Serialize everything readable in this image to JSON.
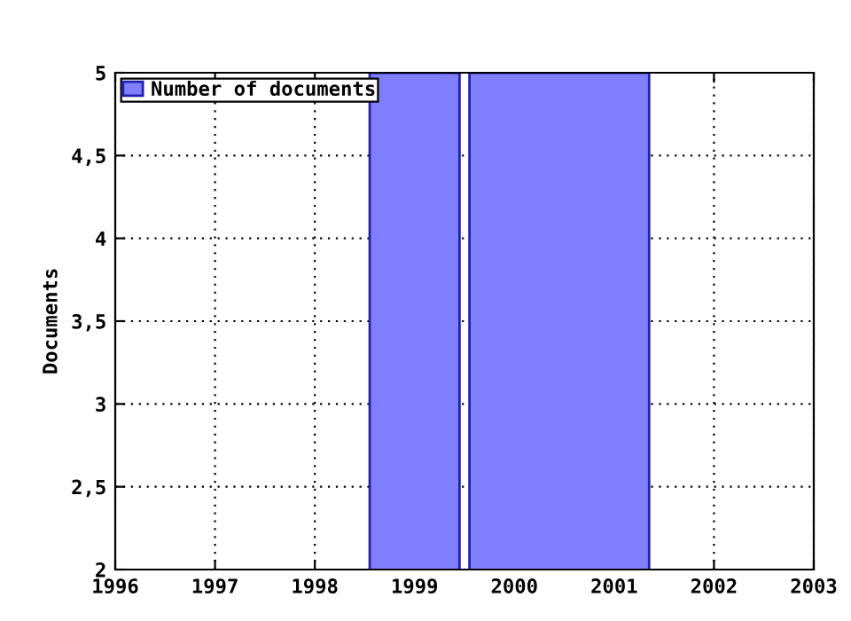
{
  "chart_data": {
    "type": "histogram",
    "ylabel": "Documents",
    "bins": [
      1998.55,
      1999.45,
      1999.55,
      2001.35
    ],
    "series": [
      {
        "name": "Number of documents",
        "color": "#8080ff",
        "values": [
          5,
          null,
          5
        ]
      }
    ],
    "xlim": [
      1996,
      2003
    ],
    "xticks": [
      1996,
      1997,
      1998,
      1999,
      2000,
      2001,
      2002,
      2003
    ],
    "ylim": [
      2,
      5
    ],
    "yticks": [
      2,
      {
        "value": 2.5,
        "label": "2,5"
      },
      3,
      {
        "value": 3.5,
        "label": "3,5"
      },
      4,
      {
        "value": 4.5,
        "label": "4,5"
      },
      5
    ],
    "grid": true,
    "legend": "top left"
  }
}
